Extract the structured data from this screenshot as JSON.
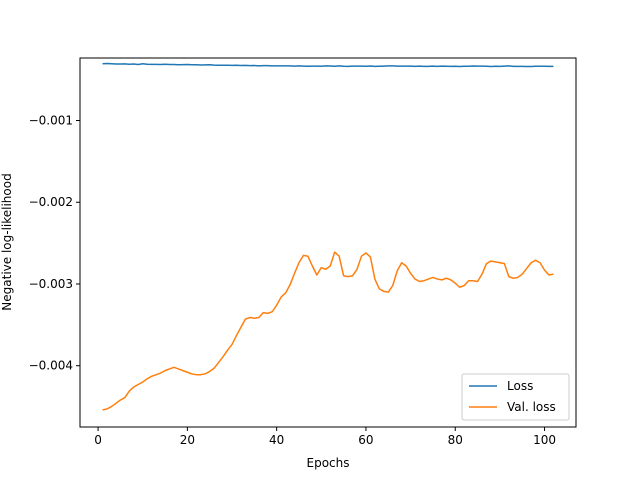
{
  "chart_data": {
    "type": "line",
    "title": "",
    "xlabel": "Epochs",
    "ylabel": "Negative log-likelihood",
    "xlim": [
      -4.05,
      107.05
    ],
    "ylim": [
      -0.00475,
      -0.000235
    ],
    "xticks": [
      0,
      20,
      40,
      60,
      80,
      100
    ],
    "xtick_labels": [
      "0",
      "20",
      "40",
      "60",
      "80",
      "100"
    ],
    "yticks": [
      -0.004,
      -0.003,
      -0.002,
      -0.001
    ],
    "ytick_labels": [
      "−0.004",
      "−0.003",
      "−0.002",
      "−0.001"
    ],
    "grid": false,
    "legend_position": "lower-right",
    "series": [
      {
        "name": "Loss",
        "color": "#1f77b4",
        "x": [
          1,
          2,
          3,
          4,
          5,
          6,
          7,
          8,
          9,
          10,
          11,
          12,
          13,
          14,
          15,
          16,
          17,
          18,
          19,
          20,
          21,
          22,
          23,
          24,
          25,
          26,
          27,
          28,
          29,
          30,
          31,
          32,
          33,
          34,
          35,
          36,
          37,
          38,
          39,
          40,
          41,
          42,
          43,
          44,
          45,
          46,
          47,
          48,
          49,
          50,
          51,
          52,
          53,
          54,
          55,
          56,
          57,
          58,
          59,
          60,
          61,
          62,
          63,
          64,
          65,
          66,
          67,
          68,
          69,
          70,
          71,
          72,
          73,
          74,
          75,
          76,
          77,
          78,
          79,
          80,
          81,
          82,
          83,
          84,
          85,
          86,
          87,
          88,
          89,
          90,
          91,
          92,
          93,
          94,
          95,
          96,
          97,
          98,
          99,
          100,
          101,
          102
        ],
        "y": [
          -0.000305,
          -0.000303,
          -0.000306,
          -0.000308,
          -0.000309,
          -0.000307,
          -0.000312,
          -0.000309,
          -0.000314,
          -0.000306,
          -0.000312,
          -0.000313,
          -0.000313,
          -0.000314,
          -0.000312,
          -0.000315,
          -0.000314,
          -0.000317,
          -0.000316,
          -0.000315,
          -0.000318,
          -0.000318,
          -0.000321,
          -0.000319,
          -0.000317,
          -0.000322,
          -0.000323,
          -0.000324,
          -0.000323,
          -0.000325,
          -0.000324,
          -0.000327,
          -0.000325,
          -0.000328,
          -0.000327,
          -0.000331,
          -0.000329,
          -0.000328,
          -0.000331,
          -0.000331,
          -0.000331,
          -0.000332,
          -0.000332,
          -0.000334,
          -0.000332,
          -0.000334,
          -0.000336,
          -0.000335,
          -0.000335,
          -0.000336,
          -0.000331,
          -0.000333,
          -0.000336,
          -0.000332,
          -0.000336,
          -0.000338,
          -0.000335,
          -0.000335,
          -0.000335,
          -0.000336,
          -0.000333,
          -0.000337,
          -0.000336,
          -0.000334,
          -0.000331,
          -0.000332,
          -0.000335,
          -0.000334,
          -0.000335,
          -0.000335,
          -0.000337,
          -0.000335,
          -0.000337,
          -0.000338,
          -0.000334,
          -0.000337,
          -0.000335,
          -0.000336,
          -0.000337,
          -0.000336,
          -0.000339,
          -0.000336,
          -0.000336,
          -0.000333,
          -0.000334,
          -0.000335,
          -0.000336,
          -0.000339,
          -0.000336,
          -0.000338,
          -0.000335,
          -0.000332,
          -0.000338,
          -0.000337,
          -0.000337,
          -0.000339,
          -0.000339,
          -0.000336,
          -0.000336,
          -0.000336,
          -0.000338,
          -0.000337
        ]
      },
      {
        "name": "Val. loss",
        "color": "#ff7f0e",
        "x": [
          1,
          2,
          3,
          4,
          5,
          6,
          7,
          8,
          9,
          10,
          11,
          12,
          13,
          14,
          15,
          16,
          17,
          18,
          19,
          20,
          21,
          22,
          23,
          24,
          25,
          26,
          27,
          28,
          29,
          30,
          31,
          32,
          33,
          34,
          35,
          36,
          37,
          38,
          39,
          40,
          41,
          42,
          43,
          44,
          45,
          46,
          47,
          48,
          49,
          50,
          51,
          52,
          53,
          54,
          55,
          56,
          57,
          58,
          59,
          60,
          61,
          62,
          63,
          64,
          65,
          66,
          67,
          68,
          69,
          70,
          71,
          72,
          73,
          74,
          75,
          76,
          77,
          78,
          79,
          80,
          81,
          82,
          83,
          84,
          85,
          86,
          87,
          88,
          89,
          90,
          91,
          92,
          93,
          94,
          95,
          96,
          97,
          98,
          99,
          100,
          101,
          102
        ],
        "y": [
          -0.00454,
          -0.00453,
          -0.0045,
          -0.00446,
          -0.00442,
          -0.00439,
          -0.00431,
          -0.00426,
          -0.00423,
          -0.0042,
          -0.00416,
          -0.00413,
          -0.00411,
          -0.00409,
          -0.00406,
          -0.00404,
          -0.00402,
          -0.00404,
          -0.00406,
          -0.00408,
          -0.0041,
          -0.00411,
          -0.00411,
          -0.0041,
          -0.00407,
          -0.00403,
          -0.00396,
          -0.00389,
          -0.00381,
          -0.00374,
          -0.00363,
          -0.00353,
          -0.00343,
          -0.00341,
          -0.00342,
          -0.00341,
          -0.00335,
          -0.00336,
          -0.00334,
          -0.00326,
          -0.00316,
          -0.00311,
          -0.00301,
          -0.00287,
          -0.00274,
          -0.00265,
          -0.00266,
          -0.00278,
          -0.00289,
          -0.0028,
          -0.00282,
          -0.00278,
          -0.00261,
          -0.00266,
          -0.0029,
          -0.00291,
          -0.0029,
          -0.00282,
          -0.00266,
          -0.00262,
          -0.00267,
          -0.00294,
          -0.00306,
          -0.00309,
          -0.0031,
          -0.00302,
          -0.00284,
          -0.00274,
          -0.00278,
          -0.00287,
          -0.00294,
          -0.00297,
          -0.00296,
          -0.00294,
          -0.00292,
          -0.00294,
          -0.00295,
          -0.00293,
          -0.00295,
          -0.00299,
          -0.00304,
          -0.00302,
          -0.00296,
          -0.00296,
          -0.00297,
          -0.00288,
          -0.00275,
          -0.00272,
          -0.00273,
          -0.00274,
          -0.00275,
          -0.00291,
          -0.00293,
          -0.00292,
          -0.00288,
          -0.00281,
          -0.00274,
          -0.00271,
          -0.00274,
          -0.00283,
          -0.00289,
          -0.00288
        ]
      }
    ]
  }
}
